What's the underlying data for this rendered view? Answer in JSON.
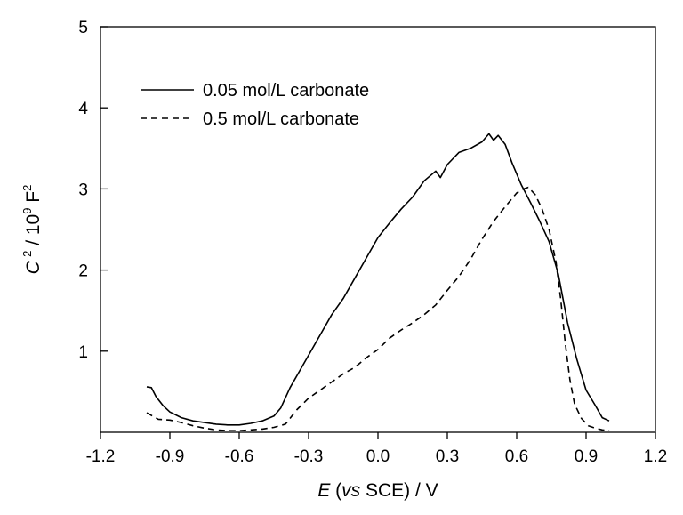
{
  "chart_data": {
    "type": "line",
    "title": "",
    "xlabel": {
      "italic": "E",
      "open": " (",
      "vs": "vs",
      "rest": " SCE) / V"
    },
    "ylabel": {
      "c": "C",
      "exp_neg2": "-2",
      "mid": " / 10",
      "exp9": "9",
      "f": " F",
      "exp2": "2"
    },
    "xlim": [
      -1.2,
      1.2
    ],
    "ylim": [
      0,
      5
    ],
    "xticks": [
      -1.2,
      -0.9,
      -0.6,
      -0.3,
      0.0,
      0.3,
      0.6,
      0.9,
      1.2
    ],
    "xtick_labels": [
      "-1.2",
      "-0.9",
      "-0.6",
      "-0.3",
      "0.0",
      "0.3",
      "0.6",
      "0.9",
      "1.2"
    ],
    "yticks": [
      1,
      2,
      3,
      4,
      5
    ],
    "ytick_labels": [
      "1",
      "2",
      "3",
      "4",
      "5"
    ],
    "grid": false,
    "legend_position": "top-left",
    "series": [
      {
        "name": "0.05 mol/L carbonate",
        "style": "solid",
        "color": "#000000",
        "x": [
          -1.0,
          -0.98,
          -0.96,
          -0.93,
          -0.9,
          -0.85,
          -0.8,
          -0.75,
          -0.7,
          -0.65,
          -0.6,
          -0.55,
          -0.5,
          -0.45,
          -0.42,
          -0.38,
          -0.34,
          -0.3,
          -0.25,
          -0.2,
          -0.15,
          -0.1,
          -0.05,
          0.0,
          0.05,
          0.1,
          0.15,
          0.2,
          0.25,
          0.27,
          0.3,
          0.35,
          0.4,
          0.45,
          0.48,
          0.5,
          0.52,
          0.55,
          0.58,
          0.62,
          0.66,
          0.7,
          0.74,
          0.78,
          0.82,
          0.86,
          0.9,
          0.94,
          0.97,
          1.0
        ],
        "values": [
          0.56,
          0.55,
          0.44,
          0.33,
          0.25,
          0.18,
          0.14,
          0.12,
          0.1,
          0.09,
          0.09,
          0.11,
          0.14,
          0.2,
          0.3,
          0.55,
          0.75,
          0.95,
          1.2,
          1.45,
          1.65,
          1.9,
          2.15,
          2.4,
          2.58,
          2.75,
          2.9,
          3.1,
          3.22,
          3.14,
          3.3,
          3.45,
          3.5,
          3.58,
          3.68,
          3.6,
          3.66,
          3.55,
          3.32,
          3.05,
          2.83,
          2.6,
          2.35,
          1.95,
          1.35,
          0.9,
          0.52,
          0.33,
          0.18,
          0.14
        ]
      },
      {
        "name": "0.5 mol/L carbonate",
        "style": "dashed",
        "color": "#000000",
        "x": [
          -1.0,
          -0.95,
          -0.9,
          -0.85,
          -0.8,
          -0.75,
          -0.7,
          -0.65,
          -0.6,
          -0.55,
          -0.5,
          -0.45,
          -0.4,
          -0.35,
          -0.3,
          -0.25,
          -0.2,
          -0.15,
          -0.1,
          -0.05,
          0.0,
          0.05,
          0.1,
          0.15,
          0.2,
          0.25,
          0.3,
          0.35,
          0.4,
          0.45,
          0.5,
          0.55,
          0.6,
          0.63,
          0.65,
          0.68,
          0.71,
          0.74,
          0.77,
          0.79,
          0.81,
          0.83,
          0.85,
          0.88,
          0.91,
          0.94,
          0.97,
          1.0
        ],
        "values": [
          0.24,
          0.16,
          0.15,
          0.12,
          0.08,
          0.05,
          0.03,
          0.02,
          0.02,
          0.03,
          0.04,
          0.06,
          0.1,
          0.28,
          0.42,
          0.52,
          0.62,
          0.72,
          0.8,
          0.92,
          1.02,
          1.16,
          1.26,
          1.35,
          1.45,
          1.57,
          1.75,
          1.92,
          2.13,
          2.38,
          2.6,
          2.78,
          2.95,
          3.0,
          3.02,
          2.93,
          2.75,
          2.5,
          2.1,
          1.65,
          1.1,
          0.65,
          0.35,
          0.17,
          0.08,
          0.05,
          0.03,
          0.02
        ]
      }
    ]
  }
}
